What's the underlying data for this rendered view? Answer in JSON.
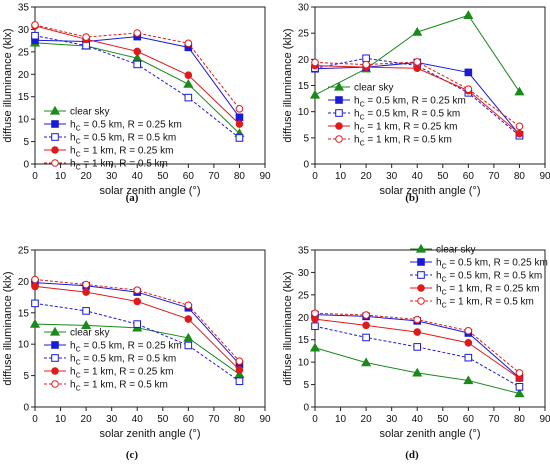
{
  "chart_data": [
    {
      "type": "line",
      "panel_label": "(a)",
      "xlabel": "solar zenith angle (°)",
      "ylabel": "diffuse illuminance (klx)",
      "xlim": [
        0,
        90
      ],
      "ylim": [
        0,
        35
      ],
      "xticks": [
        0,
        10,
        20,
        30,
        40,
        50,
        60,
        70,
        80,
        90
      ],
      "yticks": [
        0,
        5,
        10,
        15,
        20,
        25,
        30,
        35
      ],
      "legend_position": "bottom-left",
      "x": [
        0,
        20,
        40,
        60,
        80
      ],
      "series": [
        {
          "name": "clear sky",
          "values": [
            27.0,
            26.3,
            23.6,
            17.8,
            6.8
          ]
        },
        {
          "name": "h_C = 0.5 km, R = 0.25 km",
          "values": [
            27.6,
            27.3,
            28.4,
            26.0,
            10.4
          ]
        },
        {
          "name": "h_C = 0.5 km, R = 0.5 km",
          "values": [
            28.6,
            26.4,
            22.2,
            14.8,
            5.8
          ]
        },
        {
          "name": "h_C = 1 km, R = 0.25 km",
          "values": [
            30.8,
            27.8,
            25.1,
            19.8,
            8.9
          ]
        },
        {
          "name": "h_C = 1 km, R = 0.5 km",
          "values": [
            31.0,
            28.3,
            29.2,
            26.9,
            12.3
          ]
        }
      ]
    },
    {
      "type": "line",
      "panel_label": "(b)",
      "xlabel": "solar zenith angle (°)",
      "ylabel": "diffuse illuminance (klx)",
      "xlim": [
        0,
        90
      ],
      "ylim": [
        0,
        30
      ],
      "xticks": [
        0,
        10,
        20,
        30,
        40,
        50,
        60,
        70,
        80,
        90
      ],
      "yticks": [
        0,
        5,
        10,
        15,
        20,
        25,
        30
      ],
      "legend_position": "bottom-left",
      "x": [
        0,
        20,
        40,
        60,
        80
      ],
      "series": [
        {
          "name": "clear sky",
          "values": [
            13.2,
            18.2,
            25.2,
            28.4,
            13.8
          ]
        },
        {
          "name": "h_C = 0.5 km, R = 0.25 km",
          "values": [
            18.2,
            18.5,
            19.4,
            17.5,
            5.6
          ]
        },
        {
          "name": "h_C = 0.5 km, R = 0.5 km",
          "values": [
            18.3,
            20.2,
            18.8,
            13.6,
            5.4
          ]
        },
        {
          "name": "h_C = 1 km, R = 0.25 km",
          "values": [
            18.8,
            18.5,
            18.3,
            14.0,
            5.8
          ]
        },
        {
          "name": "h_C = 1 km, R = 0.5 km",
          "values": [
            19.4,
            19.0,
            19.5,
            14.3,
            7.2
          ]
        }
      ]
    },
    {
      "type": "line",
      "panel_label": "(c)",
      "xlabel": "solar zenith angle (°)",
      "ylabel": "diffuse illuminance (klx)",
      "xlim": [
        0,
        90
      ],
      "ylim": [
        0,
        25
      ],
      "xticks": [
        0,
        10,
        20,
        30,
        40,
        50,
        60,
        70,
        80,
        90
      ],
      "yticks": [
        0,
        5,
        10,
        15,
        20,
        25
      ],
      "legend_position": "bottom-left",
      "x": [
        0,
        20,
        40,
        60,
        80
      ],
      "series": [
        {
          "name": "clear sky",
          "values": [
            13.2,
            13.0,
            12.6,
            11.0,
            5.2
          ]
        },
        {
          "name": "h_C = 0.5 km, R = 0.25 km",
          "values": [
            19.8,
            19.3,
            18.3,
            15.8,
            6.8
          ]
        },
        {
          "name": "h_C = 0.5 km, R = 0.5 km",
          "values": [
            16.5,
            15.3,
            13.2,
            9.8,
            4.1
          ]
        },
        {
          "name": "h_C = 1 km, R = 0.25 km",
          "values": [
            19.2,
            18.3,
            16.8,
            14.0,
            5.9
          ]
        },
        {
          "name": "h_C = 1 km, R = 0.5 km",
          "values": [
            20.3,
            19.5,
            18.6,
            16.2,
            7.3
          ]
        }
      ]
    },
    {
      "type": "line",
      "panel_label": "(d)",
      "xlabel": "solar zenith angle (°)",
      "ylabel": "diffuse illuminance (klx)",
      "xlim": [
        0,
        90
      ],
      "ylim": [
        0,
        35
      ],
      "xticks": [
        0,
        10,
        20,
        30,
        40,
        50,
        60,
        70,
        80,
        90
      ],
      "yticks": [
        0,
        5,
        10,
        15,
        20,
        25,
        30,
        35
      ],
      "legend_position": "top-right",
      "x": [
        0,
        20,
        40,
        60,
        80
      ],
      "series": [
        {
          "name": "clear sky",
          "values": [
            13.2,
            9.9,
            7.6,
            5.9,
            3.0
          ]
        },
        {
          "name": "h_C = 0.5 km, R = 0.25 km",
          "values": [
            20.6,
            20.2,
            19.2,
            16.5,
            6.5
          ]
        },
        {
          "name": "h_C = 0.5 km, R = 0.5 km",
          "values": [
            18.0,
            15.5,
            13.4,
            11.0,
            4.5
          ]
        },
        {
          "name": "h_C = 1 km, R = 0.25 km",
          "values": [
            19.6,
            18.2,
            16.7,
            14.3,
            6.4
          ]
        },
        {
          "name": "h_C = 1 km, R = 0.5 km",
          "values": [
            20.9,
            20.5,
            19.5,
            17.0,
            7.6
          ]
        }
      ]
    }
  ],
  "series_styles": [
    {
      "color": "#1a8a1a",
      "marker": "triangle",
      "filled": true,
      "dashed": false
    },
    {
      "color": "#1a1ad9",
      "marker": "square",
      "filled": true,
      "dashed": false
    },
    {
      "color": "#1a1ad9",
      "marker": "square",
      "filled": false,
      "dashed": true
    },
    {
      "color": "#e01a1a",
      "marker": "circle",
      "filled": true,
      "dashed": false
    },
    {
      "color": "#e01a1a",
      "marker": "circle",
      "filled": false,
      "dashed": true
    }
  ],
  "legend_labels": [
    {
      "main": "clear sky",
      "sub": "",
      "rest": ""
    },
    {
      "main": "h",
      "sub": "C",
      "rest": " = 0.5 km, R = 0.25 km"
    },
    {
      "main": "h",
      "sub": "C",
      "rest": " = 0.5 km, R = 0.5 km"
    },
    {
      "main": "h",
      "sub": "C",
      "rest": " = 1 km, R = 0.25 km"
    },
    {
      "main": "h",
      "sub": "C",
      "rest": " = 1 km, R = 0.5 km"
    }
  ]
}
